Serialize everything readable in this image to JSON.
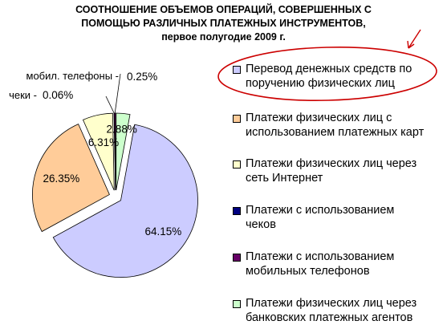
{
  "chart_data": {
    "type": "pie",
    "title": [
      "СООТНОШЕНИЕ ОБЪЕМОВ ОПЕРАЦИЙ, СОВЕРШЕННЫХ С",
      "ПОМОЩЬЮ РАЗЛИЧНЫХ ПЛАТЕЖНЫХ ИНСТРУМЕНТОВ,",
      "первое полугодие 2009 г."
    ],
    "slices": [
      {
        "name": "Перевод денежных средств по поручению физических лиц",
        "value": 64.15,
        "label": "64.15%",
        "color": "#ccccff"
      },
      {
        "name": "Платежи физических лиц с использованием платежных карт",
        "value": 26.35,
        "label": "26.35%",
        "color": "#ffcc99"
      },
      {
        "name": "Платежи физических лиц через сеть Интернет",
        "value": 6.31,
        "label": "6.31%",
        "color": "#ffffcc"
      },
      {
        "name": "Платежи с использованием чеков",
        "value": 0.06,
        "label": "0.06%",
        "color": "#000080"
      },
      {
        "name": "Платежи с использованием мобильных телефонов",
        "value": 0.25,
        "label": "0.25%",
        "color": "#660066"
      },
      {
        "name": "Платежи физических лиц через банковских платежных агентов",
        "value": 2.88,
        "label": "2.88%",
        "color": "#ccffcc"
      }
    ],
    "legend": [
      [
        "Перевод денежных средств по",
        "поручению физических лиц"
      ],
      [
        "Платежи физических лиц с",
        "использованием платежных карт"
      ],
      [
        "Платежи физических лиц через",
        "сеть Интернет"
      ],
      [
        "Платежи с использованием",
        "чеков"
      ],
      [
        "Платежи с использованием",
        "мобильных телефонов"
      ],
      [
        "Платежи физических лиц через",
        "банковских платежных агентов"
      ]
    ],
    "annotations": {
      "mobile": "мобил. телефоны -",
      "checks": "чеки -"
    },
    "legend_placement": "right",
    "highlight_color": "#cc0000"
  }
}
